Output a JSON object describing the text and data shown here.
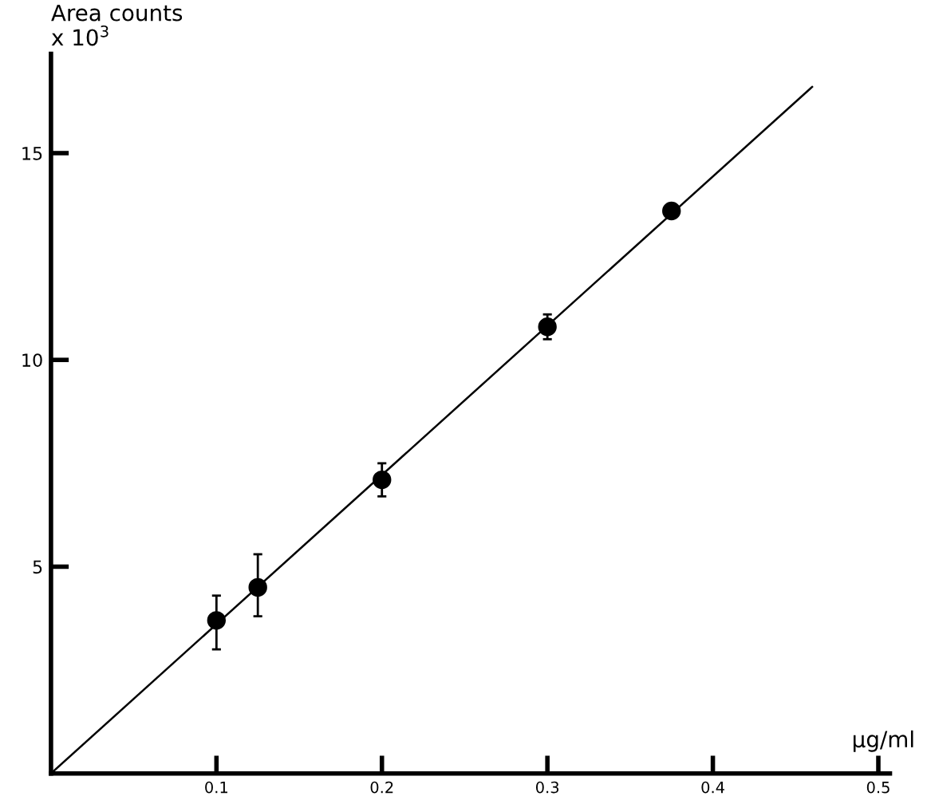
{
  "chart_data": {
    "type": "scatter",
    "ylabel": "Area counts\nx 10$^{3}$",
    "xlabel": "µg/ml",
    "xlim": [
      0,
      0.507
    ],
    "ylim": [
      0,
      17.4
    ],
    "xticks": [
      0.1,
      0.2,
      0.3,
      0.4,
      0.5
    ],
    "yticks": [
      5,
      10,
      15
    ],
    "grid": false,
    "legend": false,
    "series": [
      {
        "color": "#000000",
        "marker": "circle",
        "x": [
          0.1,
          0.125,
          0.2,
          0.3,
          0.375
        ],
        "values": [
          3.7,
          4.5,
          7.1,
          10.8,
          13.6
        ],
        "errors": [
          [
            3.0,
            4.3
          ],
          [
            3.8,
            5.3
          ],
          [
            6.7,
            7.5
          ],
          [
            10.5,
            11.1
          ],
          null
        ]
      },
      {
        "type": "line",
        "color": "#000000",
        "x": [
          0,
          0.46
        ],
        "values": [
          0,
          16.6
        ],
        "line_style": "solid"
      }
    ]
  }
}
